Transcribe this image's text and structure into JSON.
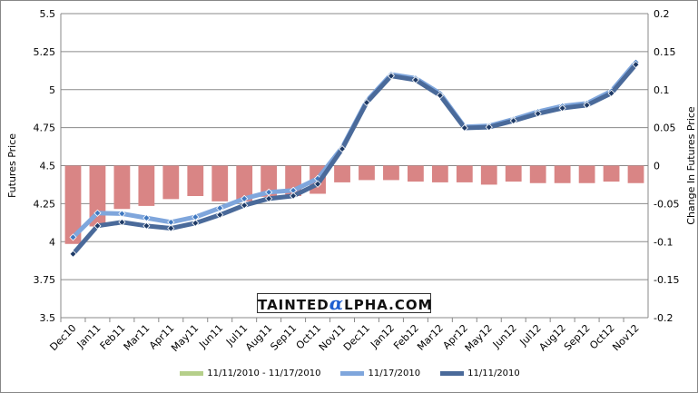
{
  "chart_data": {
    "type": "bar+line",
    "categories": [
      "Dec10",
      "Jan11",
      "Feb11",
      "Mar11",
      "Apr11",
      "May11",
      "Jun11",
      "Jul11",
      "Aug11",
      "Sep11",
      "Oct11",
      "Nov11",
      "Dec11",
      "Jan12",
      "Feb12",
      "Mar12",
      "Apr12",
      "May12",
      "Jun12",
      "Jul12",
      "Aug12",
      "Sep12",
      "Oct12",
      "Nov12"
    ],
    "ylabel": "Futures Price",
    "y2label": "Change In Futures Price",
    "ylim": [
      3.5,
      5.5
    ],
    "y2lim": [
      -0.2,
      0.2
    ],
    "yticks": [
      "3.5",
      "3.75",
      "4",
      "4.25",
      "4.5",
      "4.75",
      "5",
      "5.25",
      "5.5"
    ],
    "y2ticks": [
      "-0.2",
      "-0.15",
      "-0.1",
      "-0.05",
      "0",
      "0.05",
      "0.1",
      "0.15",
      "0.2"
    ],
    "grid": true,
    "legend_position": "bottom",
    "series": [
      {
        "name": "11/11/2010 - 11/17/2010",
        "type": "bar",
        "axis": "right",
        "legend_color": "#b5cf8a",
        "color": "#d98585",
        "values": [
          -0.103,
          -0.08,
          -0.057,
          -0.053,
          -0.044,
          -0.04,
          -0.047,
          -0.047,
          -0.041,
          -0.04,
          -0.037,
          -0.022,
          -0.019,
          -0.019,
          -0.021,
          -0.022,
          -0.022,
          -0.025,
          -0.021,
          -0.023,
          -0.023,
          -0.023,
          -0.021,
          -0.023
        ]
      },
      {
        "name": "11/17/2010",
        "type": "line",
        "axis": "left",
        "color": "#7fa6dc",
        "values": [
          4.029,
          4.188,
          4.184,
          4.156,
          4.128,
          4.162,
          4.221,
          4.283,
          4.325,
          4.337,
          4.415,
          4.62,
          4.925,
          5.1,
          5.075,
          4.975,
          4.755,
          4.762,
          4.805,
          4.855,
          4.892,
          4.91,
          4.99,
          5.18
        ]
      },
      {
        "name": "11/11/2010",
        "type": "line",
        "axis": "left",
        "color": "#4a6a9a",
        "values": [
          3.919,
          4.104,
          4.128,
          4.104,
          4.088,
          4.122,
          4.176,
          4.239,
          4.283,
          4.301,
          4.379,
          4.61,
          4.915,
          5.09,
          5.064,
          4.962,
          4.748,
          4.753,
          4.795,
          4.842,
          4.878,
          4.898,
          4.976,
          5.165
        ]
      }
    ],
    "watermark": "TAINTEDαLPHA.COM"
  },
  "logo": {
    "pre": "TAINTED",
    "alpha": "α",
    "post": "LPHA.COM"
  }
}
